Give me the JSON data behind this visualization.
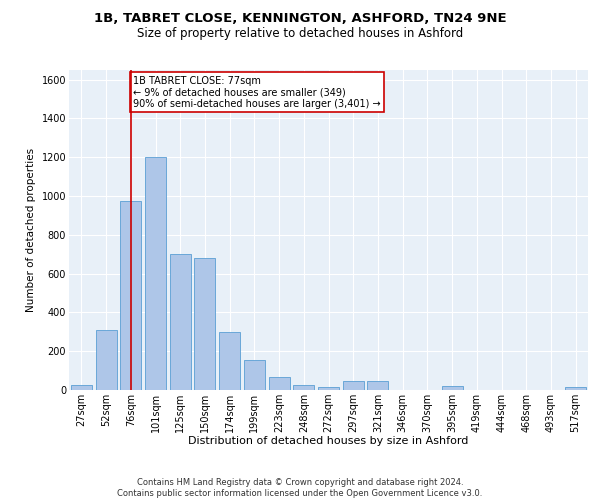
{
  "title1": "1B, TABRET CLOSE, KENNINGTON, ASHFORD, TN24 9NE",
  "title2": "Size of property relative to detached houses in Ashford",
  "xlabel": "Distribution of detached houses by size in Ashford",
  "ylabel": "Number of detached properties",
  "categories": [
    "27sqm",
    "52sqm",
    "76sqm",
    "101sqm",
    "125sqm",
    "150sqm",
    "174sqm",
    "199sqm",
    "223sqm",
    "248sqm",
    "272sqm",
    "297sqm",
    "321sqm",
    "346sqm",
    "370sqm",
    "395sqm",
    "419sqm",
    "444sqm",
    "468sqm",
    "493sqm",
    "517sqm"
  ],
  "values": [
    25,
    310,
    975,
    1200,
    700,
    680,
    300,
    155,
    65,
    25,
    15,
    45,
    45,
    0,
    0,
    20,
    0,
    0,
    0,
    0,
    15
  ],
  "bar_color": "#aec6e8",
  "bar_edge_color": "#5a9fd4",
  "vline_x": 2,
  "vline_color": "#cc0000",
  "annotation_text": "1B TABRET CLOSE: 77sqm\n← 9% of detached houses are smaller (349)\n90% of semi-detached houses are larger (3,401) →",
  "annotation_box_color": "#ffffff",
  "annotation_box_edge_color": "#cc0000",
  "ylim": [
    0,
    1650
  ],
  "yticks": [
    0,
    200,
    400,
    600,
    800,
    1000,
    1200,
    1400,
    1600
  ],
  "plot_bg_color": "#e8f0f8",
  "footer": "Contains HM Land Registry data © Crown copyright and database right 2024.\nContains public sector information licensed under the Open Government Licence v3.0.",
  "title1_fontsize": 9.5,
  "title2_fontsize": 8.5,
  "xlabel_fontsize": 8,
  "ylabel_fontsize": 7.5,
  "tick_fontsize": 7,
  "footer_fontsize": 6,
  "annot_fontsize": 7
}
